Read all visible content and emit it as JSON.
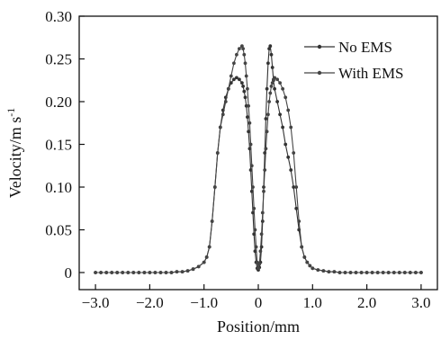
{
  "chart_data": {
    "type": "line",
    "xlabel": "Position/mm",
    "ylabel": "Velocity/m s",
    "ylabel_superscript": "-1",
    "xlim": [
      -3.3,
      3.3
    ],
    "ylim": [
      -0.02,
      0.3
    ],
    "xticks": [
      -3.0,
      -2.0,
      -1.0,
      0,
      1.0,
      2.0,
      3.0
    ],
    "xtick_labels": [
      "−3.0",
      "−2.0",
      "−1.0",
      "0",
      "1.0",
      "2.0",
      "3.0"
    ],
    "yticks": [
      0,
      0.05,
      0.1,
      0.15,
      0.2,
      0.25,
      0.3
    ],
    "ytick_labels": [
      "0",
      "0.05",
      "0.10",
      "0.15",
      "0.20",
      "0.25",
      "0.30"
    ],
    "grid": false,
    "legend_position": "top-right",
    "series": [
      {
        "name": "No EMS",
        "x": [
          -3.0,
          -2.9,
          -2.8,
          -2.7,
          -2.6,
          -2.5,
          -2.4,
          -2.3,
          -2.2,
          -2.1,
          -2.0,
          -1.9,
          -1.8,
          -1.7,
          -1.6,
          -1.5,
          -1.4,
          -1.3,
          -1.2,
          -1.1,
          -1.0,
          -0.95,
          -0.9,
          -0.85,
          -0.8,
          -0.75,
          -0.7,
          -0.65,
          -0.6,
          -0.55,
          -0.5,
          -0.45,
          -0.4,
          -0.35,
          -0.3,
          -0.28,
          -0.26,
          -0.24,
          -0.22,
          -0.2,
          -0.18,
          -0.16,
          -0.14,
          -0.12,
          -0.1,
          -0.08,
          -0.06,
          -0.04,
          -0.02,
          0,
          0.02,
          0.04,
          0.06,
          0.08,
          0.1,
          0.12,
          0.14,
          0.16,
          0.18,
          0.2,
          0.22,
          0.24,
          0.26,
          0.28,
          0.3,
          0.35,
          0.4,
          0.45,
          0.5,
          0.55,
          0.6,
          0.65,
          0.7,
          0.75,
          0.8,
          0.85,
          0.9,
          0.95,
          1.0,
          1.1,
          1.2,
          1.3,
          1.4,
          1.5,
          1.6,
          1.7,
          1.8,
          1.9,
          2.0,
          2.1,
          2.2,
          2.3,
          2.4,
          2.5,
          2.6,
          2.7,
          2.8,
          2.9,
          3.0
        ],
        "y": [
          0,
          0,
          0,
          0,
          0,
          0,
          0,
          0,
          0,
          0,
          0,
          0,
          0,
          0,
          0,
          0.001,
          0.001,
          0.002,
          0.004,
          0.007,
          0.012,
          0.018,
          0.03,
          0.06,
          0.1,
          0.14,
          0.17,
          0.19,
          0.205,
          0.215,
          0.222,
          0.226,
          0.228,
          0.226,
          0.222,
          0.218,
          0.212,
          0.205,
          0.195,
          0.182,
          0.165,
          0.145,
          0.12,
          0.095,
          0.07,
          0.045,
          0.025,
          0.012,
          0.005,
          0.003,
          0.006,
          0.012,
          0.03,
          0.06,
          0.1,
          0.14,
          0.18,
          0.215,
          0.245,
          0.262,
          0.265,
          0.255,
          0.24,
          0.225,
          0.215,
          0.2,
          0.185,
          0.17,
          0.15,
          0.135,
          0.12,
          0.1,
          0.075,
          0.05,
          0.03,
          0.018,
          0.012,
          0.008,
          0.005,
          0.003,
          0.002,
          0.001,
          0.001,
          0,
          0,
          0,
          0,
          0,
          0,
          0,
          0,
          0,
          0,
          0,
          0,
          0,
          0,
          0,
          0
        ]
      },
      {
        "name": "With EMS",
        "x": [
          -3.0,
          -2.9,
          -2.8,
          -2.7,
          -2.6,
          -2.5,
          -2.4,
          -2.3,
          -2.2,
          -2.1,
          -2.0,
          -1.9,
          -1.8,
          -1.7,
          -1.6,
          -1.5,
          -1.4,
          -1.3,
          -1.2,
          -1.1,
          -1.0,
          -0.95,
          -0.9,
          -0.85,
          -0.8,
          -0.75,
          -0.7,
          -0.65,
          -0.6,
          -0.55,
          -0.5,
          -0.45,
          -0.4,
          -0.35,
          -0.3,
          -0.28,
          -0.26,
          -0.24,
          -0.22,
          -0.2,
          -0.18,
          -0.16,
          -0.14,
          -0.12,
          -0.1,
          -0.08,
          -0.06,
          -0.04,
          -0.02,
          0,
          0.02,
          0.04,
          0.06,
          0.08,
          0.1,
          0.12,
          0.14,
          0.16,
          0.18,
          0.2,
          0.22,
          0.24,
          0.26,
          0.28,
          0.3,
          0.35,
          0.4,
          0.45,
          0.5,
          0.55,
          0.6,
          0.65,
          0.7,
          0.75,
          0.8,
          0.85,
          0.9,
          0.95,
          1.0,
          1.1,
          1.2,
          1.3,
          1.4,
          1.5,
          1.6,
          1.7,
          1.8,
          1.9,
          2.0,
          2.1,
          2.2,
          2.3,
          2.4,
          2.5,
          2.6,
          2.7,
          2.8,
          2.9,
          3.0
        ],
        "y": [
          0,
          0,
          0,
          0,
          0,
          0,
          0,
          0,
          0,
          0,
          0,
          0,
          0,
          0,
          0,
          0.001,
          0.001,
          0.002,
          0.004,
          0.007,
          0.012,
          0.018,
          0.03,
          0.06,
          0.1,
          0.14,
          0.17,
          0.185,
          0.2,
          0.215,
          0.23,
          0.245,
          0.255,
          0.262,
          0.265,
          0.262,
          0.255,
          0.245,
          0.23,
          0.215,
          0.195,
          0.175,
          0.15,
          0.125,
          0.1,
          0.075,
          0.05,
          0.03,
          0.012,
          0.005,
          0.01,
          0.025,
          0.045,
          0.07,
          0.095,
          0.12,
          0.145,
          0.165,
          0.185,
          0.2,
          0.21,
          0.218,
          0.222,
          0.226,
          0.228,
          0.226,
          0.222,
          0.215,
          0.205,
          0.19,
          0.17,
          0.14,
          0.1,
          0.06,
          0.03,
          0.018,
          0.012,
          0.008,
          0.005,
          0.003,
          0.002,
          0.001,
          0.001,
          0,
          0,
          0,
          0,
          0,
          0,
          0,
          0,
          0,
          0,
          0,
          0,
          0,
          0,
          0,
          0
        ]
      }
    ]
  },
  "colors": {
    "background": "#ffffff",
    "axis": "#111111",
    "series": [
      "#333333",
      "#444444"
    ]
  }
}
